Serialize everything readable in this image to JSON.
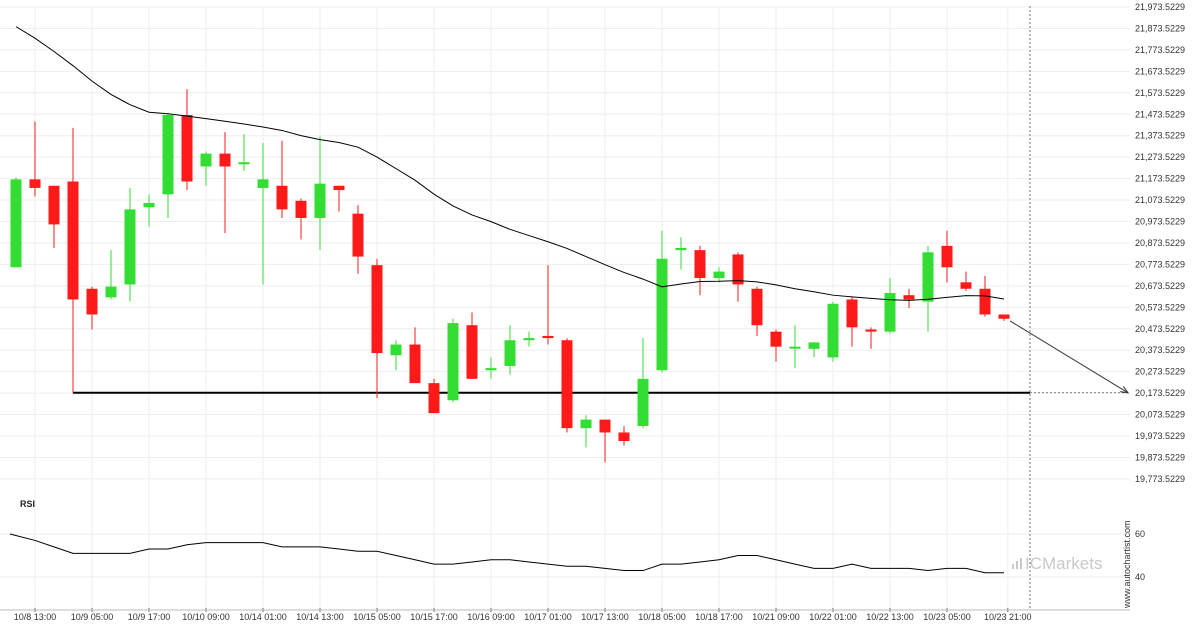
{
  "chart_data": {
    "type": "candlestick",
    "y_ticks": [
      "21,973.5229",
      "21,873.5229",
      "21,773.5229",
      "21,673.5229",
      "21,573.5229",
      "21,473.5229",
      "21,373.5229",
      "21,273.5229",
      "21,173.5229",
      "21,073.5229",
      "20,973.5229",
      "20,873.5229",
      "20,773.5229",
      "20,673.5229",
      "20,573.5229",
      "20,473.5229",
      "20,373.5229",
      "20,273.5229",
      "20,173.5229",
      "20,073.5229",
      "19,973.5229",
      "19,873.5229",
      "19,773.5229"
    ],
    "y_tick_values": [
      21973.5229,
      21873.5229,
      21773.5229,
      21673.5229,
      21573.5229,
      21473.5229,
      21373.5229,
      21273.5229,
      21173.5229,
      21073.5229,
      20973.5229,
      20873.5229,
      20773.5229,
      20673.5229,
      20573.5229,
      20473.5229,
      20373.5229,
      20273.5229,
      20173.5229,
      20073.5229,
      19973.5229,
      19873.5229,
      19773.5229
    ],
    "x_ticks": [
      {
        "label": "10/8 13:00",
        "index": 1
      },
      {
        "label": "10/9 05:00",
        "index": 4
      },
      {
        "label": "10/9 17:00",
        "index": 7
      },
      {
        "label": "10/10 09:00",
        "index": 10
      },
      {
        "label": "10/14 01:00",
        "index": 13
      },
      {
        "label": "10/14 13:00",
        "index": 16
      },
      {
        "label": "10/15 05:00",
        "index": 19
      },
      {
        "label": "10/15 17:00",
        "index": 22
      },
      {
        "label": "10/16 09:00",
        "index": 25
      },
      {
        "label": "10/17 01:00",
        "index": 28
      },
      {
        "label": "10/17 13:00",
        "index": 31
      },
      {
        "label": "10/18 05:00",
        "index": 34
      },
      {
        "label": "10/18 17:00",
        "index": 37
      },
      {
        "label": "10/21 09:00",
        "index": 40
      },
      {
        "label": "10/22 01:00",
        "index": 43
      },
      {
        "label": "10/22 13:00",
        "index": 46
      },
      {
        "label": "10/23 05:00",
        "index": 49
      },
      {
        "label": "10/23 21:00",
        "index": 52.2
      }
    ],
    "candles": [
      {
        "o": 20760,
        "h": 21180,
        "l": 20760,
        "c": 21170
      },
      {
        "o": 21170,
        "h": 21440,
        "l": 21090,
        "c": 21130
      },
      {
        "o": 21140,
        "h": 21140,
        "l": 20850,
        "c": 20960
      },
      {
        "o": 21160,
        "h": 21410,
        "l": 20175,
        "c": 20610
      },
      {
        "o": 20660,
        "h": 20670,
        "l": 20470,
        "c": 20540
      },
      {
        "o": 20620,
        "h": 20840,
        "l": 20610,
        "c": 20670
      },
      {
        "o": 20680,
        "h": 21130,
        "l": 20600,
        "c": 21030
      },
      {
        "o": 21040,
        "h": 21100,
        "l": 20950,
        "c": 21060
      },
      {
        "o": 21100,
        "h": 21480,
        "l": 20990,
        "c": 21470
      },
      {
        "o": 21470,
        "h": 21590,
        "l": 21120,
        "c": 21160
      },
      {
        "o": 21230,
        "h": 21300,
        "l": 21140,
        "c": 21290
      },
      {
        "o": 21290,
        "h": 21390,
        "l": 20920,
        "c": 21230
      },
      {
        "o": 21240,
        "h": 21380,
        "l": 21210,
        "c": 21250
      },
      {
        "o": 21130,
        "h": 21340,
        "l": 20680,
        "c": 21170
      },
      {
        "o": 21140,
        "h": 21350,
        "l": 20990,
        "c": 21030
      },
      {
        "o": 21070,
        "h": 21080,
        "l": 20890,
        "c": 20990
      },
      {
        "o": 20990,
        "h": 21370,
        "l": 20840,
        "c": 21150
      },
      {
        "o": 21140,
        "h": 21140,
        "l": 21020,
        "c": 21120
      },
      {
        "o": 21010,
        "h": 21050,
        "l": 20730,
        "c": 20810
      },
      {
        "o": 20770,
        "h": 20800,
        "l": 20150,
        "c": 20360
      },
      {
        "o": 20350,
        "h": 20420,
        "l": 20280,
        "c": 20400
      },
      {
        "o": 20400,
        "h": 20480,
        "l": 20230,
        "c": 20220
      },
      {
        "o": 20220,
        "h": 20240,
        "l": 20080,
        "c": 20080
      },
      {
        "o": 20140,
        "h": 20520,
        "l": 20130,
        "c": 20500
      },
      {
        "o": 20490,
        "h": 20550,
        "l": 20240,
        "c": 20240
      },
      {
        "o": 20280,
        "h": 20340,
        "l": 20240,
        "c": 20290
      },
      {
        "o": 20300,
        "h": 20490,
        "l": 20260,
        "c": 20420
      },
      {
        "o": 20420,
        "h": 20460,
        "l": 20390,
        "c": 20430
      },
      {
        "o": 20440,
        "h": 20770,
        "l": 20400,
        "c": 20430
      },
      {
        "o": 20420,
        "h": 20430,
        "l": 19990,
        "c": 20010
      },
      {
        "o": 20010,
        "h": 20070,
        "l": 19920,
        "c": 20050
      },
      {
        "o": 20050,
        "h": 20050,
        "l": 19850,
        "c": 19990
      },
      {
        "o": 19990,
        "h": 20020,
        "l": 19930,
        "c": 19950
      },
      {
        "o": 20020,
        "h": 20430,
        "l": 20010,
        "c": 20240
      },
      {
        "o": 20280,
        "h": 20930,
        "l": 20270,
        "c": 20800
      },
      {
        "o": 20840,
        "h": 20900,
        "l": 20750,
        "c": 20850
      },
      {
        "o": 20840,
        "h": 20860,
        "l": 20630,
        "c": 20710
      },
      {
        "o": 20710,
        "h": 20760,
        "l": 20690,
        "c": 20740
      },
      {
        "o": 20820,
        "h": 20830,
        "l": 20600,
        "c": 20680
      },
      {
        "o": 20660,
        "h": 20670,
        "l": 20440,
        "c": 20490
      },
      {
        "o": 20460,
        "h": 20470,
        "l": 20320,
        "c": 20390
      },
      {
        "o": 20390,
        "h": 20490,
        "l": 20290,
        "c": 20390
      },
      {
        "o": 20380,
        "h": 20410,
        "l": 20340,
        "c": 20410
      },
      {
        "o": 20340,
        "h": 20600,
        "l": 20320,
        "c": 20590
      },
      {
        "o": 20610,
        "h": 20620,
        "l": 20390,
        "c": 20480
      },
      {
        "o": 20470,
        "h": 20480,
        "l": 20380,
        "c": 20460
      },
      {
        "o": 20460,
        "h": 20710,
        "l": 20450,
        "c": 20640
      },
      {
        "o": 20630,
        "h": 20660,
        "l": 20570,
        "c": 20610
      },
      {
        "o": 20600,
        "h": 20860,
        "l": 20460,
        "c": 20830
      },
      {
        "o": 20860,
        "h": 20930,
        "l": 20690,
        "c": 20760
      },
      {
        "o": 20690,
        "h": 20740,
        "l": 20650,
        "c": 20660
      },
      {
        "o": 20660,
        "h": 20720,
        "l": 20530,
        "c": 20540
      },
      {
        "o": 20540,
        "h": 20540,
        "l": 20510,
        "c": 20520
      }
    ],
    "moving_average": [
      21882,
      21828,
      21766,
      21700,
      21628,
      21566,
      21518,
      21483,
      21476,
      21465,
      21453,
      21441,
      21428,
      21414,
      21398,
      21374,
      21355,
      21342,
      21320,
      21274,
      21220,
      21166,
      21101,
      21046,
      21004,
      20973,
      20937,
      20908,
      20879,
      20848,
      20810,
      20772,
      20736,
      20705,
      20669,
      20682,
      20694,
      20695,
      20698,
      20692,
      20678,
      20660,
      20646,
      20630,
      20622,
      20615,
      20609,
      20606,
      20611,
      20620,
      20628,
      20627,
      20612
    ],
    "support_level": 20175,
    "support_start_index": 3,
    "forecast_line": {
      "from_index": 52,
      "from_value": 20510,
      "to_index": 56,
      "to_value": 20175
    },
    "rsi": {
      "label": "RSI",
      "ticks": [
        60,
        40
      ],
      "values": [
        60,
        57,
        54,
        51,
        51,
        51,
        51,
        53,
        53,
        55,
        56,
        56,
        56,
        56,
        54,
        54,
        54,
        53,
        52,
        52,
        50,
        48,
        46,
        46,
        47,
        48,
        48,
        47,
        46,
        45,
        45,
        44,
        43,
        43,
        46,
        46,
        47,
        48,
        50,
        50,
        48,
        46,
        44,
        44,
        46,
        44,
        44,
        44,
        43,
        44,
        44,
        42,
        42
      ]
    },
    "watermark": "ICMarkets",
    "side_text": "www.autochartist.com",
    "colors": {
      "up": "#33dd33",
      "down": "#ff1a1a",
      "line": "#000000",
      "grid": "#eeeeee",
      "support": "#000000"
    }
  }
}
